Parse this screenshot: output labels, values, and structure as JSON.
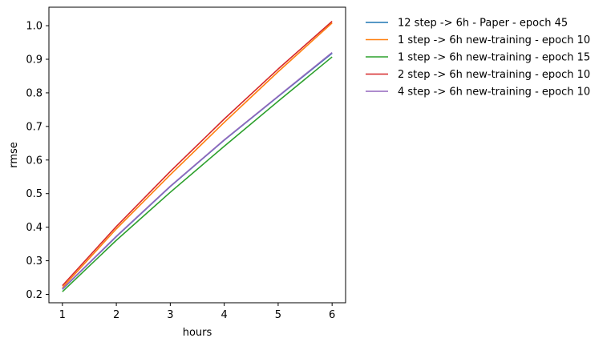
{
  "chart_data": {
    "type": "line",
    "title": "",
    "xlabel": "hours",
    "ylabel": "rmse",
    "x": [
      1,
      2,
      3,
      4,
      5,
      6
    ],
    "xlim": [
      0.75,
      6.25
    ],
    "ylim": [
      0.175,
      1.055
    ],
    "xticks": [
      1,
      2,
      3,
      4,
      5,
      6
    ],
    "yticks": [
      0.2,
      0.3,
      0.4,
      0.5,
      0.6,
      0.7,
      0.8,
      0.9,
      1.0
    ],
    "ytick_labels": [
      "0.2",
      "0.3",
      "0.4",
      "0.5",
      "0.6",
      "0.7",
      "0.8",
      "0.9",
      "1.0"
    ],
    "grid": false,
    "legend_position": "outside-right",
    "series": [
      {
        "name": "12 step -> 6h - Paper - epoch 45",
        "color": "#1f77b4",
        "values": [
          0.215,
          0.372,
          0.521,
          0.659,
          0.789,
          0.918
        ]
      },
      {
        "name": "1 step -> 6h new-training - epoch 10",
        "color": "#ff7f0e",
        "values": [
          0.22,
          0.395,
          0.556,
          0.712,
          0.863,
          1.008
        ]
      },
      {
        "name": "1 step -> 6h new-training - epoch 15",
        "color": "#2ca02c",
        "values": [
          0.208,
          0.361,
          0.504,
          0.641,
          0.775,
          0.907
        ]
      },
      {
        "name": "2 step -> 6h new-training - epoch 10",
        "color": "#d62728",
        "values": [
          0.226,
          0.402,
          0.566,
          0.722,
          0.871,
          1.013
        ]
      },
      {
        "name": "4 step -> 6h new-training - epoch 10",
        "color": "#9467bd",
        "values": [
          0.216,
          0.373,
          0.522,
          0.66,
          0.79,
          0.92
        ]
      }
    ]
  }
}
